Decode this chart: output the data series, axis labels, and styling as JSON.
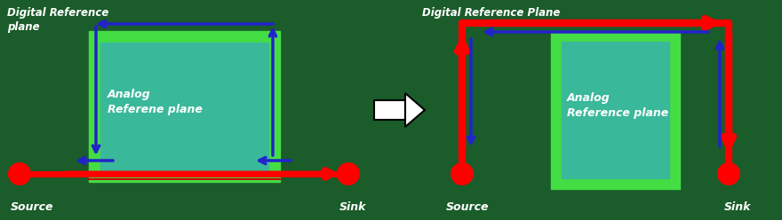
{
  "bg_color": "#1a5c2a",
  "analog_border_color": "#44dd44",
  "analog_inner_color": "#3ab89a",
  "red_color": "#ff0000",
  "blue_color": "#2222cc",
  "white_text": "#ffffff",
  "left_title": "Digital Reference\nplane",
  "right_title": "Digital Reference Plane",
  "analog_label_left": "Analog\nReferene plane",
  "analog_label_right": "Analog\nReference plane",
  "source_label": "Source",
  "sink_label": "Sink",
  "fig_w": 8.8,
  "fig_h": 2.48,
  "dpi": 100
}
